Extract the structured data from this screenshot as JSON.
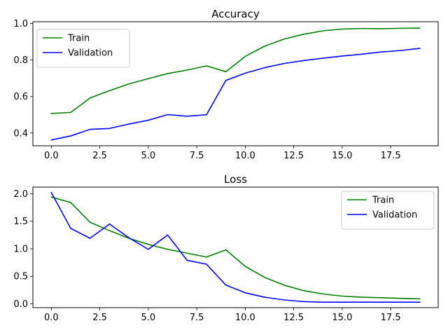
{
  "chart_data": [
    {
      "type": "line",
      "title": "Accuracy",
      "xlabel": "",
      "ylabel": "",
      "xlim": [
        -0.95,
        19.95
      ],
      "ylim": [
        0.33,
        1.01
      ],
      "xticks": [
        0.0,
        2.5,
        5.0,
        7.5,
        10.0,
        12.5,
        15.0,
        17.5
      ],
      "xtick_labels": [
        "0.0",
        "2.5",
        "5.0",
        "7.5",
        "10.0",
        "12.5",
        "15.0",
        "17.5"
      ],
      "yticks": [
        0.4,
        0.6,
        0.8,
        1.0
      ],
      "ytick_labels": [
        "0.4",
        "0.6",
        "0.8",
        "1.0"
      ],
      "legend_position": "top-left",
      "x": [
        0,
        1,
        2,
        3,
        4,
        5,
        6,
        7,
        8,
        9,
        10,
        11,
        12,
        13,
        14,
        15,
        16,
        17,
        18,
        19
      ],
      "series": [
        {
          "name": "Train",
          "color": "#008000",
          "values": [
            0.507,
            0.513,
            0.592,
            0.632,
            0.669,
            0.698,
            0.726,
            0.745,
            0.768,
            0.736,
            0.82,
            0.876,
            0.915,
            0.941,
            0.96,
            0.97,
            0.973,
            0.972,
            0.974,
            0.975
          ]
        },
        {
          "name": "Validation",
          "color": "#0000ff",
          "values": [
            0.362,
            0.384,
            0.42,
            0.425,
            0.449,
            0.47,
            0.501,
            0.492,
            0.5,
            0.688,
            0.728,
            0.758,
            0.781,
            0.797,
            0.81,
            0.822,
            0.832,
            0.844,
            0.852,
            0.864
          ]
        }
      ]
    },
    {
      "type": "line",
      "title": "Loss",
      "xlabel": "",
      "ylabel": "",
      "xlim": [
        -0.95,
        19.95
      ],
      "ylim": [
        -0.07,
        2.12
      ],
      "xticks": [
        0.0,
        2.5,
        5.0,
        7.5,
        10.0,
        12.5,
        15.0,
        17.5
      ],
      "xtick_labels": [
        "0.0",
        "2.5",
        "5.0",
        "7.5",
        "10.0",
        "12.5",
        "15.0",
        "17.5"
      ],
      "yticks": [
        0.0,
        0.5,
        1.0,
        1.5,
        2.0
      ],
      "ytick_labels": [
        "0.0",
        "0.5",
        "1.0",
        "1.5",
        "2.0"
      ],
      "legend_position": "top-right",
      "x": [
        0,
        1,
        2,
        3,
        4,
        5,
        6,
        7,
        8,
        9,
        10,
        11,
        12,
        13,
        14,
        15,
        16,
        17,
        18,
        19
      ],
      "series": [
        {
          "name": "Train",
          "color": "#008000",
          "values": [
            1.94,
            1.84,
            1.48,
            1.33,
            1.19,
            1.08,
            0.99,
            0.92,
            0.85,
            0.98,
            0.68,
            0.48,
            0.34,
            0.24,
            0.18,
            0.14,
            0.12,
            0.11,
            0.1,
            0.09
          ]
        },
        {
          "name": "Validation",
          "color": "#0000ff",
          "values": [
            2.02,
            1.37,
            1.19,
            1.45,
            1.2,
            0.99,
            1.25,
            0.79,
            0.72,
            0.34,
            0.2,
            0.12,
            0.07,
            0.04,
            0.03,
            0.03,
            0.03,
            0.03,
            0.03,
            0.03
          ]
        }
      ]
    }
  ]
}
